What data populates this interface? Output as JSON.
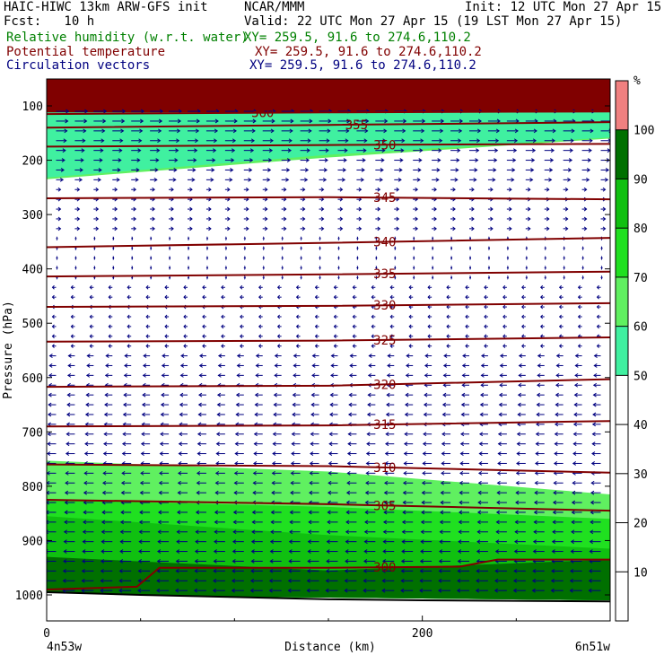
{
  "header": {
    "title": "HAIC-HIWC 13km ARW-GFS init",
    "org": "NCAR/MMM",
    "init": "Init: 12 UTC Mon 27 Apr 15",
    "fcst": "Fcst:   10 h",
    "valid": "Valid: 22 UTC Mon 27 Apr 15 (19 LST Mon 27 Apr 15)",
    "field1_label": "Relative humidity (w.r.t. water)",
    "field1_xy": "XY= 259.5, 91.6 to 274.6,110.2",
    "field2_label": "Potential temperature",
    "field2_xy": "XY= 259.5, 91.6 to 274.6,110.2",
    "field3_label": "Circulation vectors",
    "field3_xy": "XY= 259.5, 91.6 to 274.6,110.2"
  },
  "colors": {
    "rh_label": "#008000",
    "theta_label": "#800000",
    "vector_label": "#000080",
    "theta_line": "#800000",
    "vector": "#000080"
  },
  "axes": {
    "ylabel": "Pressure (hPa)",
    "xlabel": "Distance (km)",
    "left_endpoint": "4n53w",
    "right_endpoint": "6n51w",
    "x_ticks": [
      "0",
      "200"
    ],
    "y_ticks": [
      "100",
      "200",
      "300",
      "400",
      "500",
      "600",
      "700",
      "800",
      "900",
      "1000"
    ]
  },
  "chart_data": {
    "type": "heatmap",
    "description_units": "pressure (hPa) vs distance (km) cross section",
    "xlim": [
      0,
      300
    ],
    "ylim": [
      1050,
      50
    ],
    "x_tick_values": [
      0,
      200
    ],
    "y_tick_values": [
      100,
      200,
      300,
      400,
      500,
      600,
      700,
      800,
      900,
      1000
    ],
    "colorbar": {
      "unit": "%",
      "labels": [
        "10",
        "20",
        "30",
        "40",
        "50",
        "60",
        "70",
        "80",
        "90",
        "100"
      ],
      "bins": [
        {
          "from": 50,
          "to": 60,
          "color": "#40f0a0"
        },
        {
          "from": 60,
          "to": 70,
          "color": "#60f060"
        },
        {
          "from": 70,
          "to": 80,
          "color": "#20e020"
        },
        {
          "from": 80,
          "to": 90,
          "color": "#10c010"
        },
        {
          "from": 90,
          "to": 100,
          "color": "#007000"
        },
        {
          "from": 100,
          "to": 110,
          "color": "#f08080"
        }
      ]
    },
    "rh_regions": [
      {
        "level": 100,
        "boundary_top": [
          [
            0,
            50
          ],
          [
            300,
            50
          ]
        ],
        "boundary_bottom": [
          [
            0,
            95
          ],
          [
            300,
            95
          ]
        ]
      },
      {
        "level": 60,
        "boundary_top": [
          [
            0,
            140
          ],
          [
            300,
            100
          ]
        ],
        "boundary_bottom": [
          [
            0,
            235
          ],
          [
            150,
            195
          ],
          [
            300,
            160
          ]
        ]
      },
      {
        "level": 50,
        "boundary_top": [
          [
            0,
            105
          ],
          [
            300,
            100
          ]
        ],
        "boundary_bottom": [
          [
            0,
            232
          ],
          [
            150,
            190
          ],
          [
            300,
            158
          ]
        ]
      },
      {
        "level": 60,
        "boundary_top": [
          [
            0,
            753
          ],
          [
            150,
            773
          ],
          [
            300,
            815
          ]
        ],
        "boundary_bottom": [
          [
            0,
            1000
          ],
          [
            300,
            1010
          ]
        ]
      },
      {
        "level": 70,
        "boundary_top": [
          [
            0,
            825
          ],
          [
            150,
            838
          ],
          [
            300,
            860
          ]
        ],
        "boundary_bottom": [
          [
            0,
            1000
          ],
          [
            300,
            1010
          ]
        ]
      },
      {
        "level": 80,
        "boundary_top": [
          [
            0,
            855
          ],
          [
            150,
            890
          ],
          [
            300,
            915
          ]
        ],
        "boundary_bottom": [
          [
            0,
            1000
          ],
          [
            300,
            1010
          ]
        ]
      },
      {
        "level": 90,
        "boundary_top": [
          [
            0,
            930
          ],
          [
            150,
            955
          ],
          [
            300,
            935
          ]
        ],
        "boundary_bottom": [
          [
            0,
            1000
          ],
          [
            300,
            1010
          ]
        ]
      }
    ],
    "theta_contours": [
      {
        "label": "360",
        "label_x": 115,
        "points": [
          [
            0,
            115
          ],
          [
            150,
            112
          ],
          [
            300,
            110
          ]
        ]
      },
      {
        "label": "355",
        "label_x": 165,
        "points": [
          [
            0,
            140
          ],
          [
            150,
            135
          ],
          [
            300,
            130
          ]
        ]
      },
      {
        "label": "350",
        "label_x": 180,
        "points": [
          [
            0,
            175
          ],
          [
            150,
            172
          ],
          [
            300,
            170
          ]
        ]
      },
      {
        "label": "345",
        "label_x": 180,
        "points": [
          [
            0,
            270
          ],
          [
            150,
            268
          ],
          [
            300,
            272
          ]
        ]
      },
      {
        "label": "340",
        "label_x": 180,
        "points": [
          [
            0,
            360
          ],
          [
            150,
            352
          ],
          [
            300,
            343
          ]
        ]
      },
      {
        "label": "335",
        "label_x": 180,
        "points": [
          [
            0,
            414
          ],
          [
            150,
            410
          ],
          [
            300,
            405
          ]
        ]
      },
      {
        "label": "330",
        "label_x": 180,
        "points": [
          [
            0,
            470
          ],
          [
            150,
            468
          ],
          [
            300,
            463
          ]
        ]
      },
      {
        "label": "325",
        "label_x": 180,
        "points": [
          [
            0,
            534
          ],
          [
            150,
            532
          ],
          [
            300,
            526
          ]
        ]
      },
      {
        "label": "320",
        "label_x": 180,
        "points": [
          [
            0,
            617
          ],
          [
            150,
            615
          ],
          [
            300,
            603
          ]
        ]
      },
      {
        "label": "315",
        "label_x": 180,
        "points": [
          [
            0,
            690
          ],
          [
            150,
            688
          ],
          [
            300,
            680
          ]
        ]
      },
      {
        "label": "310",
        "label_x": 180,
        "points": [
          [
            0,
            760
          ],
          [
            150,
            763
          ],
          [
            300,
            775
          ]
        ]
      },
      {
        "label": "305",
        "label_x": 180,
        "points": [
          [
            0,
            825
          ],
          [
            150,
            833
          ],
          [
            300,
            845
          ]
        ]
      },
      {
        "label": "300",
        "label_x": 180,
        "points": [
          [
            0,
            990
          ],
          [
            48,
            985
          ],
          [
            60,
            950
          ],
          [
            150,
            950
          ],
          [
            220,
            948
          ],
          [
            240,
            935
          ],
          [
            300,
            935
          ]
        ]
      }
    ],
    "terrain": [
      [
        0,
        995
      ],
      [
        50,
        1000
      ],
      [
        100,
        1004
      ],
      [
        150,
        1008
      ],
      [
        200,
        1010
      ],
      [
        300,
        1012
      ]
    ]
  }
}
